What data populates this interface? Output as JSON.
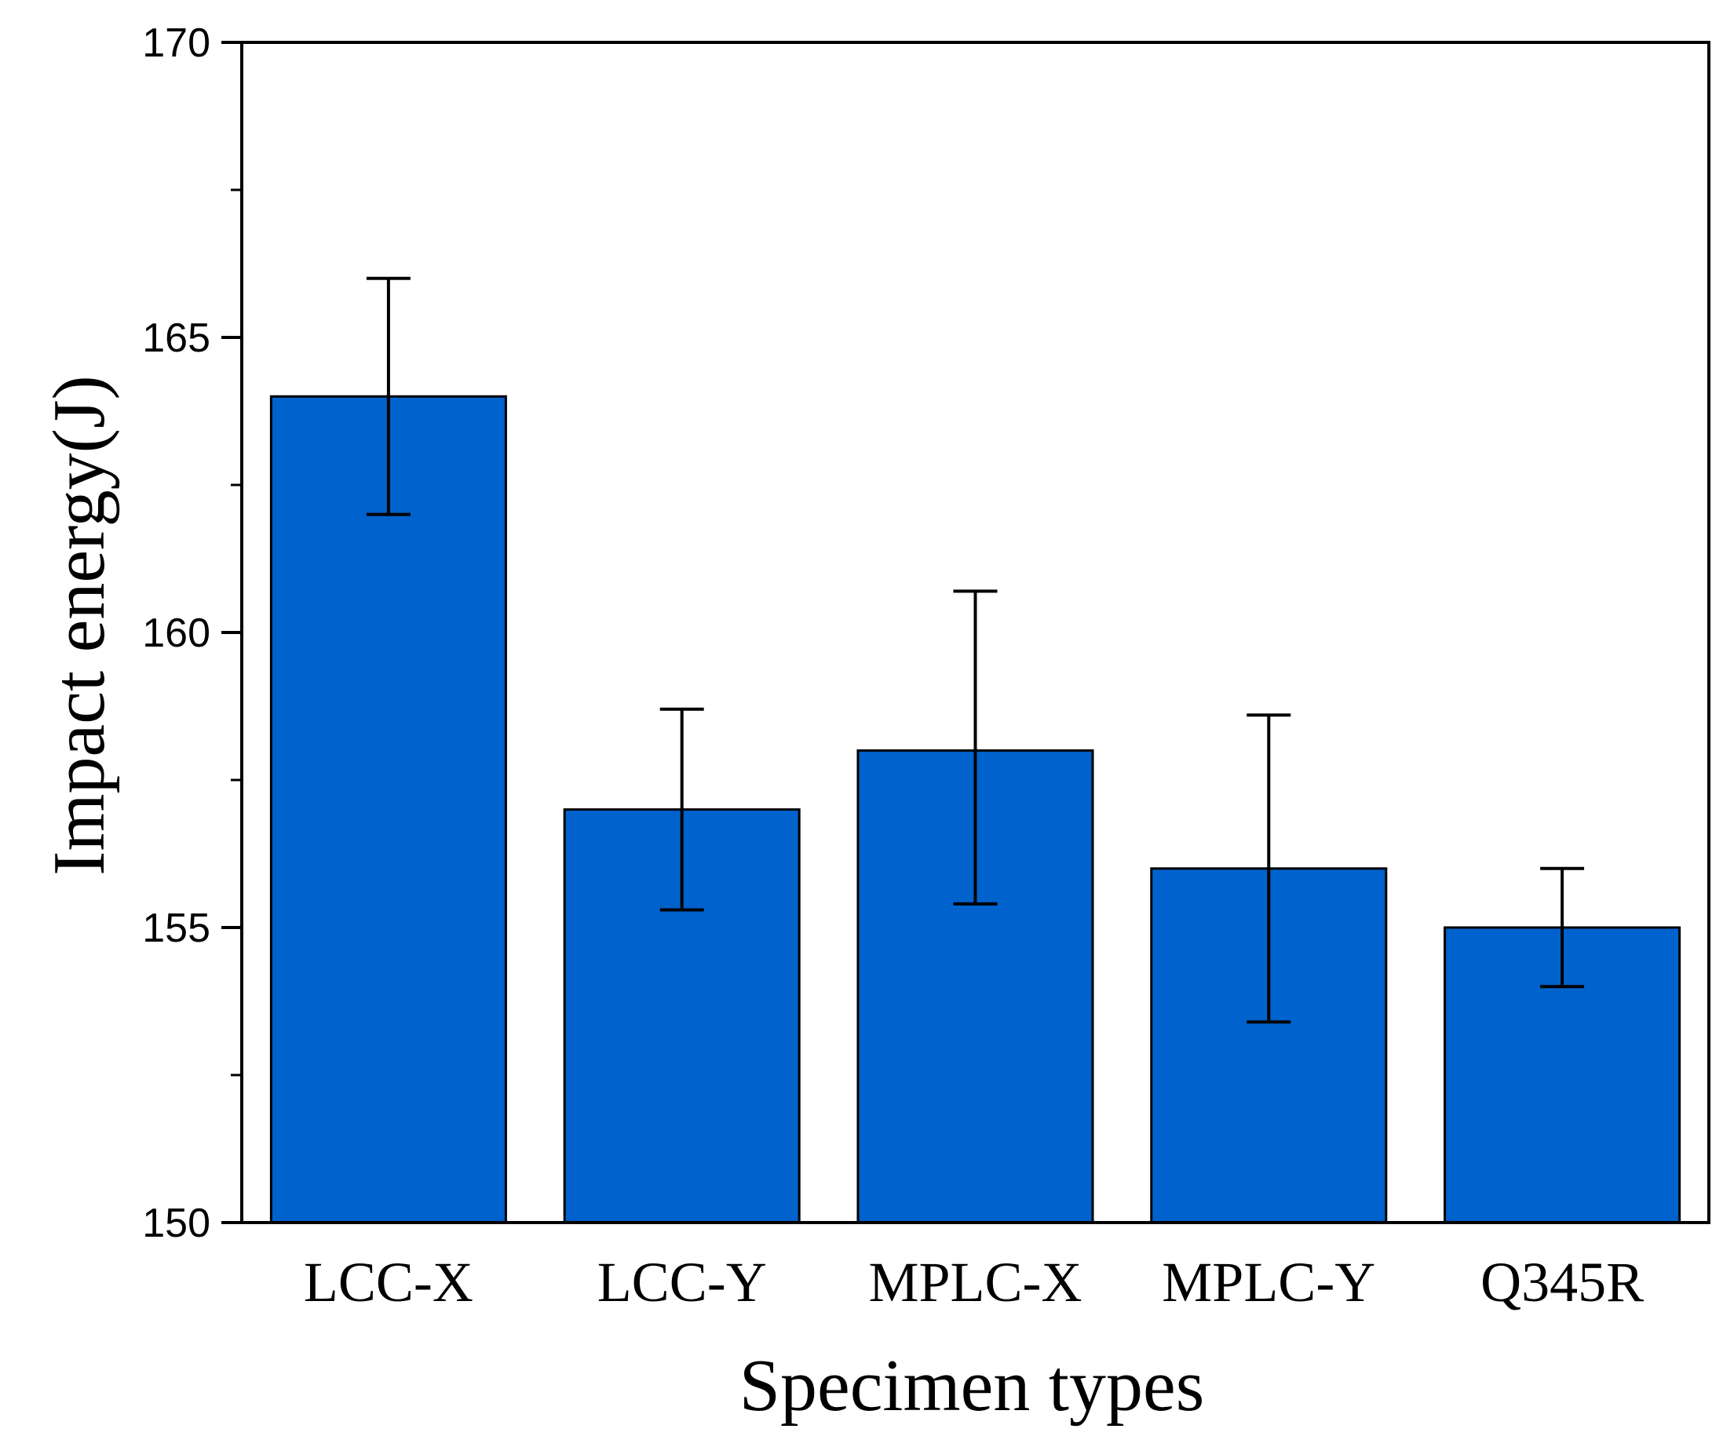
{
  "chart_data": {
    "type": "bar",
    "title": "",
    "xlabel": "Specimen types",
    "ylabel": "Impact energy(J)",
    "ylim": [
      150,
      170
    ],
    "yticks": [
      150,
      155,
      160,
      165,
      170
    ],
    "yminor_ticks": [
      152.5,
      157.5,
      162.5,
      167.5
    ],
    "grid": false,
    "legend": "none",
    "categories": [
      "LCC-X",
      "LCC-Y",
      "MPLC-X",
      "MPLC-Y",
      "Q345R"
    ],
    "values": [
      164.0,
      157.0,
      158.0,
      156.0,
      155.0
    ],
    "error_low": [
      162.0,
      155.3,
      155.4,
      153.4,
      154.0
    ],
    "error_high": [
      166.0,
      158.7,
      160.7,
      158.6,
      156.0
    ],
    "bar_color": "#0062CC",
    "edge_color": "#000000"
  }
}
